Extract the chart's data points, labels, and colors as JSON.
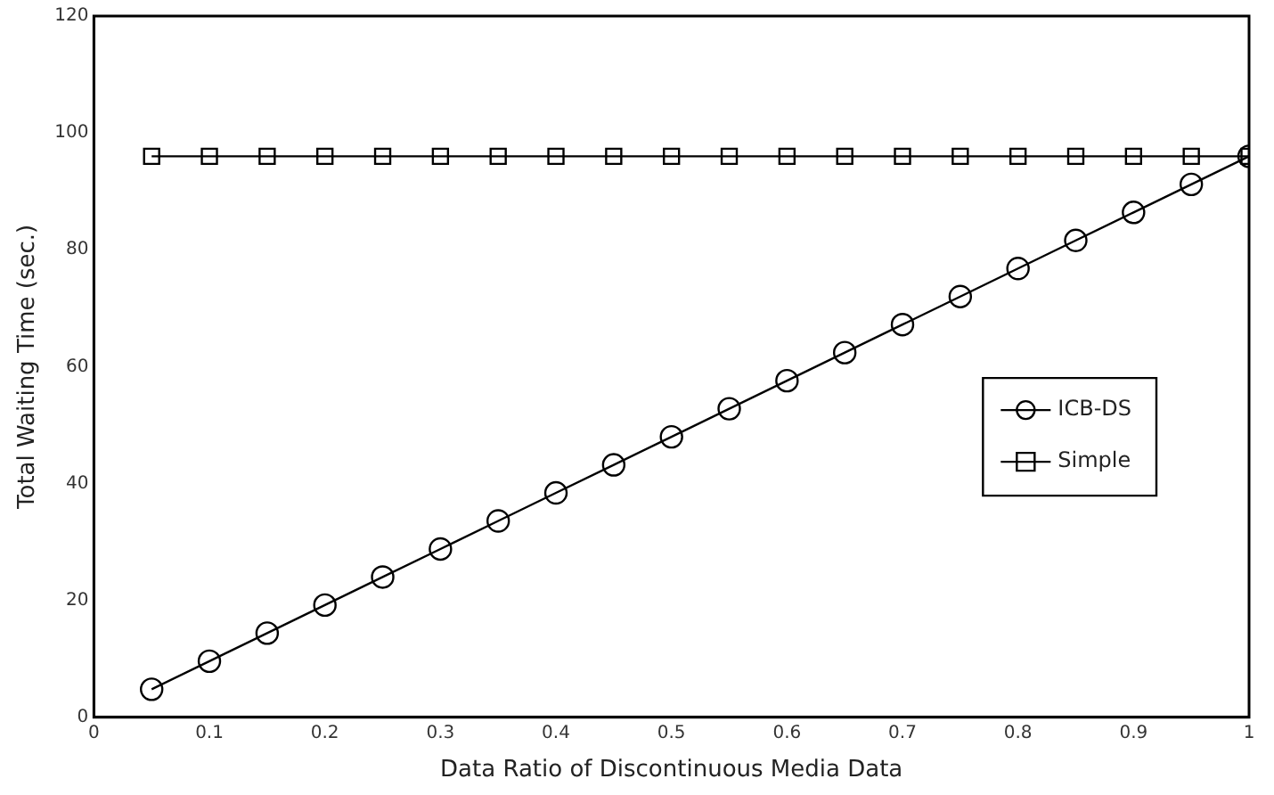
{
  "chart_data": {
    "type": "line",
    "xlabel": "Data Ratio of Discontinuous Media Data",
    "ylabel": "Total Waiting Time (sec.)",
    "x": [
      0.05,
      0.1,
      0.15,
      0.2,
      0.25,
      0.3,
      0.35,
      0.4,
      0.45,
      0.5,
      0.55,
      0.6,
      0.65,
      0.7,
      0.75,
      0.8,
      0.85,
      0.9,
      0.95,
      1
    ],
    "series": [
      {
        "name": "ICB-DS",
        "color": "#000000",
        "marker": "circle",
        "values": [
          4.8,
          9.6,
          14.4,
          19.2,
          24,
          28.8,
          33.6,
          38.4,
          43.2,
          48,
          52.8,
          57.6,
          62.4,
          67.2,
          72,
          76.8,
          81.6,
          86.4,
          91.2,
          96
        ]
      },
      {
        "name": "Simple",
        "color": "#000000",
        "marker": "square",
        "values": [
          96,
          96,
          96,
          96,
          96,
          96,
          96,
          96,
          96,
          96,
          96,
          96,
          96,
          96,
          96,
          96,
          96,
          96,
          96,
          96
        ]
      }
    ],
    "xlim": [
      0,
      1
    ],
    "xticks": [
      0,
      0.1,
      0.2,
      0.3,
      0.4,
      0.5,
      0.6,
      0.7,
      0.8,
      0.9,
      1
    ],
    "ylim": [
      0,
      120
    ],
    "yticks": [
      0,
      20,
      40,
      60,
      80,
      100,
      120
    ],
    "grid": false,
    "legend": "right",
    "line_style": "solid"
  }
}
